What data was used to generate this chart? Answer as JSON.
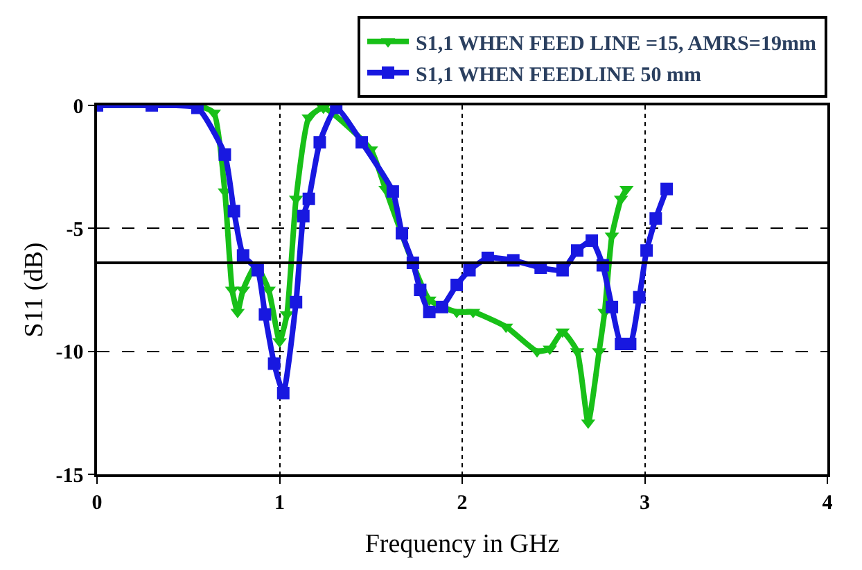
{
  "chart_data": {
    "type": "line",
    "xlabel": "Frequency in GHz",
    "ylabel": "S11 (dB)",
    "xlim": [
      0,
      4
    ],
    "ylim": [
      -15,
      0
    ],
    "xticks": [
      0,
      1,
      2,
      3,
      4
    ],
    "yticks": [
      0,
      -5,
      -10,
      -15
    ],
    "grid": true,
    "legend": "top right",
    "line_style": "solid",
    "ref_lines": [
      {
        "axis": "y",
        "value": -6.4,
        "color": "#000000"
      }
    ],
    "series": [
      {
        "name": "S1,1 WHEN FEED LINE =15, AMRS=19mm",
        "color": "#18c018",
        "marker": "triangle",
        "x": [
          0,
          0.3,
          0.55,
          0.64,
          0.7,
          0.74,
          0.77,
          0.8,
          0.87,
          0.94,
          1.0,
          1.04,
          1.09,
          1.16,
          1.24,
          1.5,
          1.58,
          1.82,
          1.97,
          2.06,
          2.24,
          2.41,
          2.48,
          2.55,
          2.63,
          2.69,
          2.75,
          2.78,
          2.82,
          2.87,
          2.9
        ],
        "values": [
          0,
          0,
          0,
          -0.3,
          -3.5,
          -7.5,
          -8.4,
          -7.5,
          -6.5,
          -7.5,
          -9.6,
          -8.5,
          -3.8,
          -0.5,
          -0.1,
          -1.8,
          -3.4,
          -7.9,
          -8.4,
          -8.4,
          -9.0,
          -10.0,
          -9.9,
          -9.2,
          -10,
          -12.9,
          -10,
          -8.4,
          -5.3,
          -3.8,
          -3.4
        ]
      },
      {
        "name": "S1,1 WHEN FEEDLINE 50 mm",
        "color": "#1818e0",
        "marker": "square",
        "x": [
          0,
          0.3,
          0.55,
          0.7,
          0.75,
          0.8,
          0.88,
          0.92,
          0.97,
          1.02,
          1.09,
          1.13,
          1.16,
          1.22,
          1.31,
          1.45,
          1.62,
          1.67,
          1.73,
          1.77,
          1.82,
          1.89,
          1.97,
          2.04,
          2.14,
          2.28,
          2.43,
          2.55,
          2.63,
          2.71,
          2.77,
          2.82,
          2.87,
          2.92,
          2.97,
          3.01,
          3.06,
          3.12
        ],
        "values": [
          0,
          0,
          -0.1,
          -2,
          -4.3,
          -6.1,
          -6.7,
          -8.5,
          -10.5,
          -11.7,
          -8,
          -4.5,
          -3.8,
          -1.5,
          -0.1,
          -1.5,
          -3.5,
          -5.2,
          -6.4,
          -7.5,
          -8.4,
          -8.2,
          -7.3,
          -6.7,
          -6.2,
          -6.3,
          -6.6,
          -6.7,
          -5.9,
          -5.5,
          -6.5,
          -8.2,
          -9.7,
          -9.7,
          -7.8,
          -5.9,
          -4.6,
          -3.4
        ]
      }
    ]
  }
}
